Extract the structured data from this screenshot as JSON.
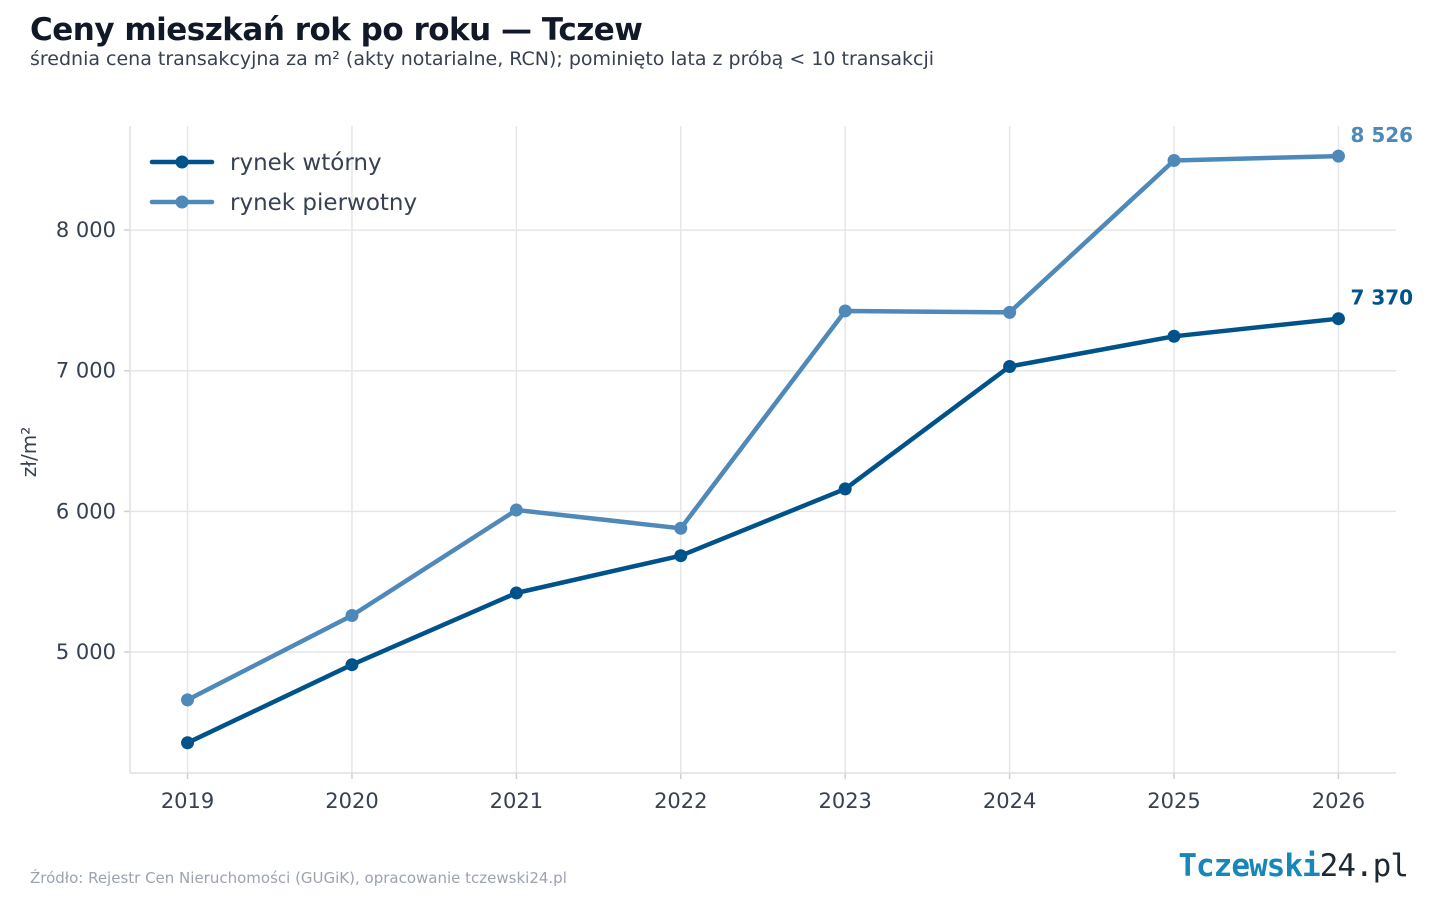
{
  "header": {
    "title": "Ceny mieszkań rok po roku — Tczew",
    "subtitle": "średnia cena transakcyjna za m² (akty notarialne, RCN); pominięto lata z próbą < 10 transakcji"
  },
  "footer": {
    "source": "Źródło: Rejestr Cen Nieruchomości (GUGiK), opracowanie tczewski24.pl",
    "logo_main": "Tczewski",
    "logo_suffix": "24.pl"
  },
  "chart_data": {
    "type": "line",
    "title": "Ceny mieszkań rok po roku — Tczew",
    "subtitle": "średnia cena transakcyjna za m² (akty notarialne, RCN); pominięto lata z próbą < 10 transakcji",
    "xlabel": "",
    "ylabel": "zł/m²",
    "x": [
      2019,
      2020,
      2021,
      2022,
      2023,
      2024,
      2025,
      2026
    ],
    "x_tick_labels": [
      "2019",
      "2020",
      "2021",
      "2022",
      "2023",
      "2024",
      "2025",
      "2026"
    ],
    "y_ticks": [
      5000,
      6000,
      7000,
      8000
    ],
    "y_tick_labels": [
      "5 000",
      "6 000",
      "7 000",
      "8 000"
    ],
    "xlim": [
      2018.65,
      2026.35
    ],
    "ylim": [
      4140,
      8740
    ],
    "grid": true,
    "legend": "top-left",
    "series": [
      {
        "name": "rynek wtórny",
        "color": "#00538a",
        "values": [
          4355,
          4910,
          5420,
          5685,
          6160,
          7030,
          7245,
          7370
        ],
        "end_label": "7 370"
      },
      {
        "name": "rynek pierwotny",
        "color": "#4e89b9",
        "values": [
          4660,
          5260,
          6010,
          5880,
          7425,
          7415,
          8495,
          8526
        ],
        "end_label": "8 526"
      }
    ]
  }
}
